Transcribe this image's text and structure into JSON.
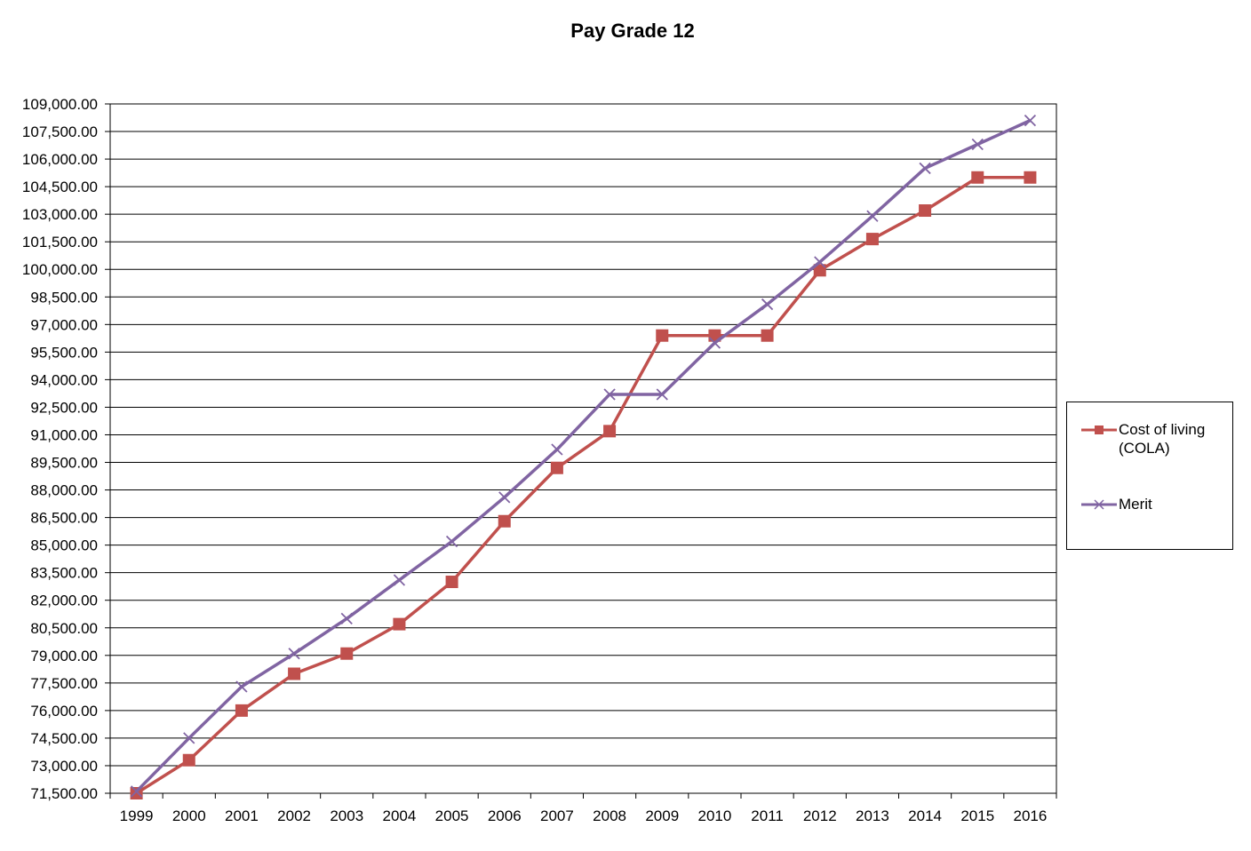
{
  "chart_data": {
    "type": "line",
    "title": "Pay Grade 12",
    "xlabel": "",
    "ylabel": "",
    "categories": [
      "1999",
      "2000",
      "2001",
      "2002",
      "2003",
      "2004",
      "2005",
      "2006",
      "2007",
      "2008",
      "2009",
      "2010",
      "2011",
      "2012",
      "2013",
      "2014",
      "2015",
      "2016"
    ],
    "ylim": [
      71500,
      109000
    ],
    "yticks": [
      "71,500.00",
      "73,000.00",
      "74,500.00",
      "76,000.00",
      "77,500.00",
      "79,000.00",
      "80,500.00",
      "82,000.00",
      "83,500.00",
      "85,000.00",
      "86,500.00",
      "88,000.00",
      "89,500.00",
      "91,000.00",
      "92,500.00",
      "94,000.00",
      "95,500.00",
      "97,000.00",
      "98,500.00",
      "100,000.00",
      "101,500.00",
      "103,000.00",
      "104,500.00",
      "106,000.00",
      "107,500.00",
      "109,000.00"
    ],
    "grid": true,
    "legend": "right",
    "series": [
      {
        "name": "Cost of living (COLA)",
        "color": "#c0504d",
        "marker": "square",
        "values": [
          71500,
          73300,
          76000,
          78000,
          79100,
          80700,
          83000,
          86300,
          89200,
          91200,
          96400,
          96400,
          96400,
          99950,
          101650,
          103200,
          105000,
          105000
        ]
      },
      {
        "name": "Merit",
        "color": "#8064a2",
        "marker": "x",
        "values": [
          71600,
          74500,
          77300,
          79100,
          81000,
          83100,
          85200,
          87600,
          90200,
          93200,
          93200,
          96000,
          98100,
          100400,
          102900,
          105500,
          106800,
          108100
        ]
      }
    ]
  },
  "legend": {
    "items": [
      {
        "label": "Cost of living (COLA)"
      },
      {
        "label": "Merit"
      }
    ]
  }
}
